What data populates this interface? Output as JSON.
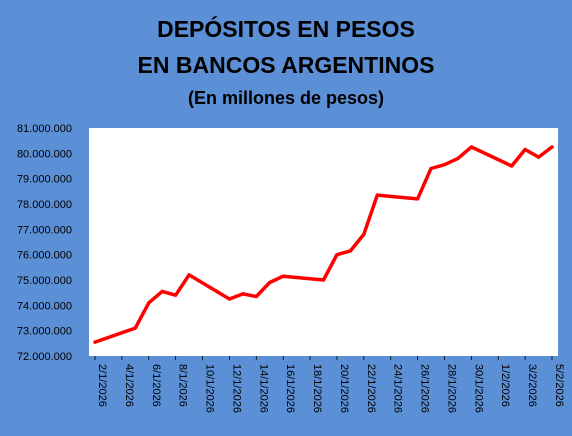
{
  "chart_data": {
    "type": "line",
    "title": "DEPÓSITOS EN PESOS",
    "title_line2": "EN BANCOS ARGENTINOS",
    "subtitle": "(En millones de pesos)",
    "xlabel": "",
    "ylabel": "",
    "ylim": [
      72000000,
      81000000
    ],
    "y_ticks": [
      72000000,
      73000000,
      74000000,
      75000000,
      76000000,
      77000000,
      78000000,
      79000000,
      80000000,
      81000000
    ],
    "y_tick_labels": [
      "72.000.000",
      "73.000.000",
      "74.000.000",
      "75.000.000",
      "76.000.000",
      "77.000.000",
      "78.000.000",
      "79.000.000",
      "80.000.000",
      "81.000.000"
    ],
    "x_range": [
      "2026-01-02",
      "2026-02-05"
    ],
    "x_tick_labels": [
      "2/1/2026",
      "4/1/2026",
      "6/1/2026",
      "8/1/2026",
      "10/1/2026",
      "12/1/2026",
      "14/1/2026",
      "16/1/2026",
      "18/1/2026",
      "20/1/2026",
      "22/1/2026",
      "24/1/2026",
      "26/1/2026",
      "28/1/2026",
      "30/1/2026",
      "1/2/2026",
      "3/2/2026",
      "5/2/2026"
    ],
    "grid": false,
    "colors": {
      "background": "#5b8fd6",
      "plot_area": "#ffffff",
      "line": "#ff0000",
      "title": "#000000"
    },
    "series": [
      {
        "color": "#ff0000",
        "points": [
          {
            "x": "2026-01-02",
            "y": 72550000
          },
          {
            "x": "2026-01-05",
            "y": 73100000
          },
          {
            "x": "2026-01-06",
            "y": 74100000
          },
          {
            "x": "2026-01-07",
            "y": 74550000
          },
          {
            "x": "2026-01-08",
            "y": 74400000
          },
          {
            "x": "2026-01-09",
            "y": 75200000
          },
          {
            "x": "2026-01-12",
            "y": 74250000
          },
          {
            "x": "2026-01-13",
            "y": 74450000
          },
          {
            "x": "2026-01-14",
            "y": 74350000
          },
          {
            "x": "2026-01-15",
            "y": 74900000
          },
          {
            "x": "2026-01-16",
            "y": 75150000
          },
          {
            "x": "2026-01-19",
            "y": 75000000
          },
          {
            "x": "2026-01-20",
            "y": 76000000
          },
          {
            "x": "2026-01-21",
            "y": 76150000
          },
          {
            "x": "2026-01-22",
            "y": 76800000
          },
          {
            "x": "2026-01-23",
            "y": 78350000
          },
          {
            "x": "2026-01-26",
            "y": 78200000
          },
          {
            "x": "2026-01-27",
            "y": 79400000
          },
          {
            "x": "2026-01-28",
            "y": 79550000
          },
          {
            "x": "2026-01-29",
            "y": 79800000
          },
          {
            "x": "2026-01-30",
            "y": 80250000
          },
          {
            "x": "2026-02-02",
            "y": 79500000
          },
          {
            "x": "2026-02-03",
            "y": 80150000
          },
          {
            "x": "2026-02-04",
            "y": 79850000
          },
          {
            "x": "2026-02-05",
            "y": 80250000
          }
        ]
      }
    ]
  }
}
